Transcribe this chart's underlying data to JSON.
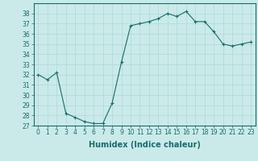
{
  "x": [
    0,
    1,
    2,
    3,
    4,
    5,
    6,
    7,
    8,
    9,
    10,
    11,
    12,
    13,
    14,
    15,
    16,
    17,
    18,
    19,
    20,
    21,
    22,
    23
  ],
  "y": [
    32,
    31.5,
    32.2,
    28.2,
    27.8,
    27.4,
    27.2,
    27.2,
    29.2,
    33.2,
    36.8,
    37.0,
    37.2,
    37.5,
    38.0,
    37.7,
    38.2,
    37.2,
    37.2,
    36.2,
    35.0,
    34.8,
    35.0,
    35.2
  ],
  "xlabel": "Humidex (Indice chaleur)",
  "ylim": [
    27,
    39
  ],
  "xlim": [
    -0.5,
    23.5
  ],
  "yticks": [
    27,
    28,
    29,
    30,
    31,
    32,
    33,
    34,
    35,
    36,
    37,
    38
  ],
  "xticks": [
    0,
    1,
    2,
    3,
    4,
    5,
    6,
    7,
    8,
    9,
    10,
    11,
    12,
    13,
    14,
    15,
    16,
    17,
    18,
    19,
    20,
    21,
    22,
    23
  ],
  "line_color": "#1a6b6b",
  "marker": "+",
  "bg_color": "#caeaea",
  "grid_color": "#b0d8d8",
  "tick_fontsize": 5.5,
  "label_fontsize": 7
}
